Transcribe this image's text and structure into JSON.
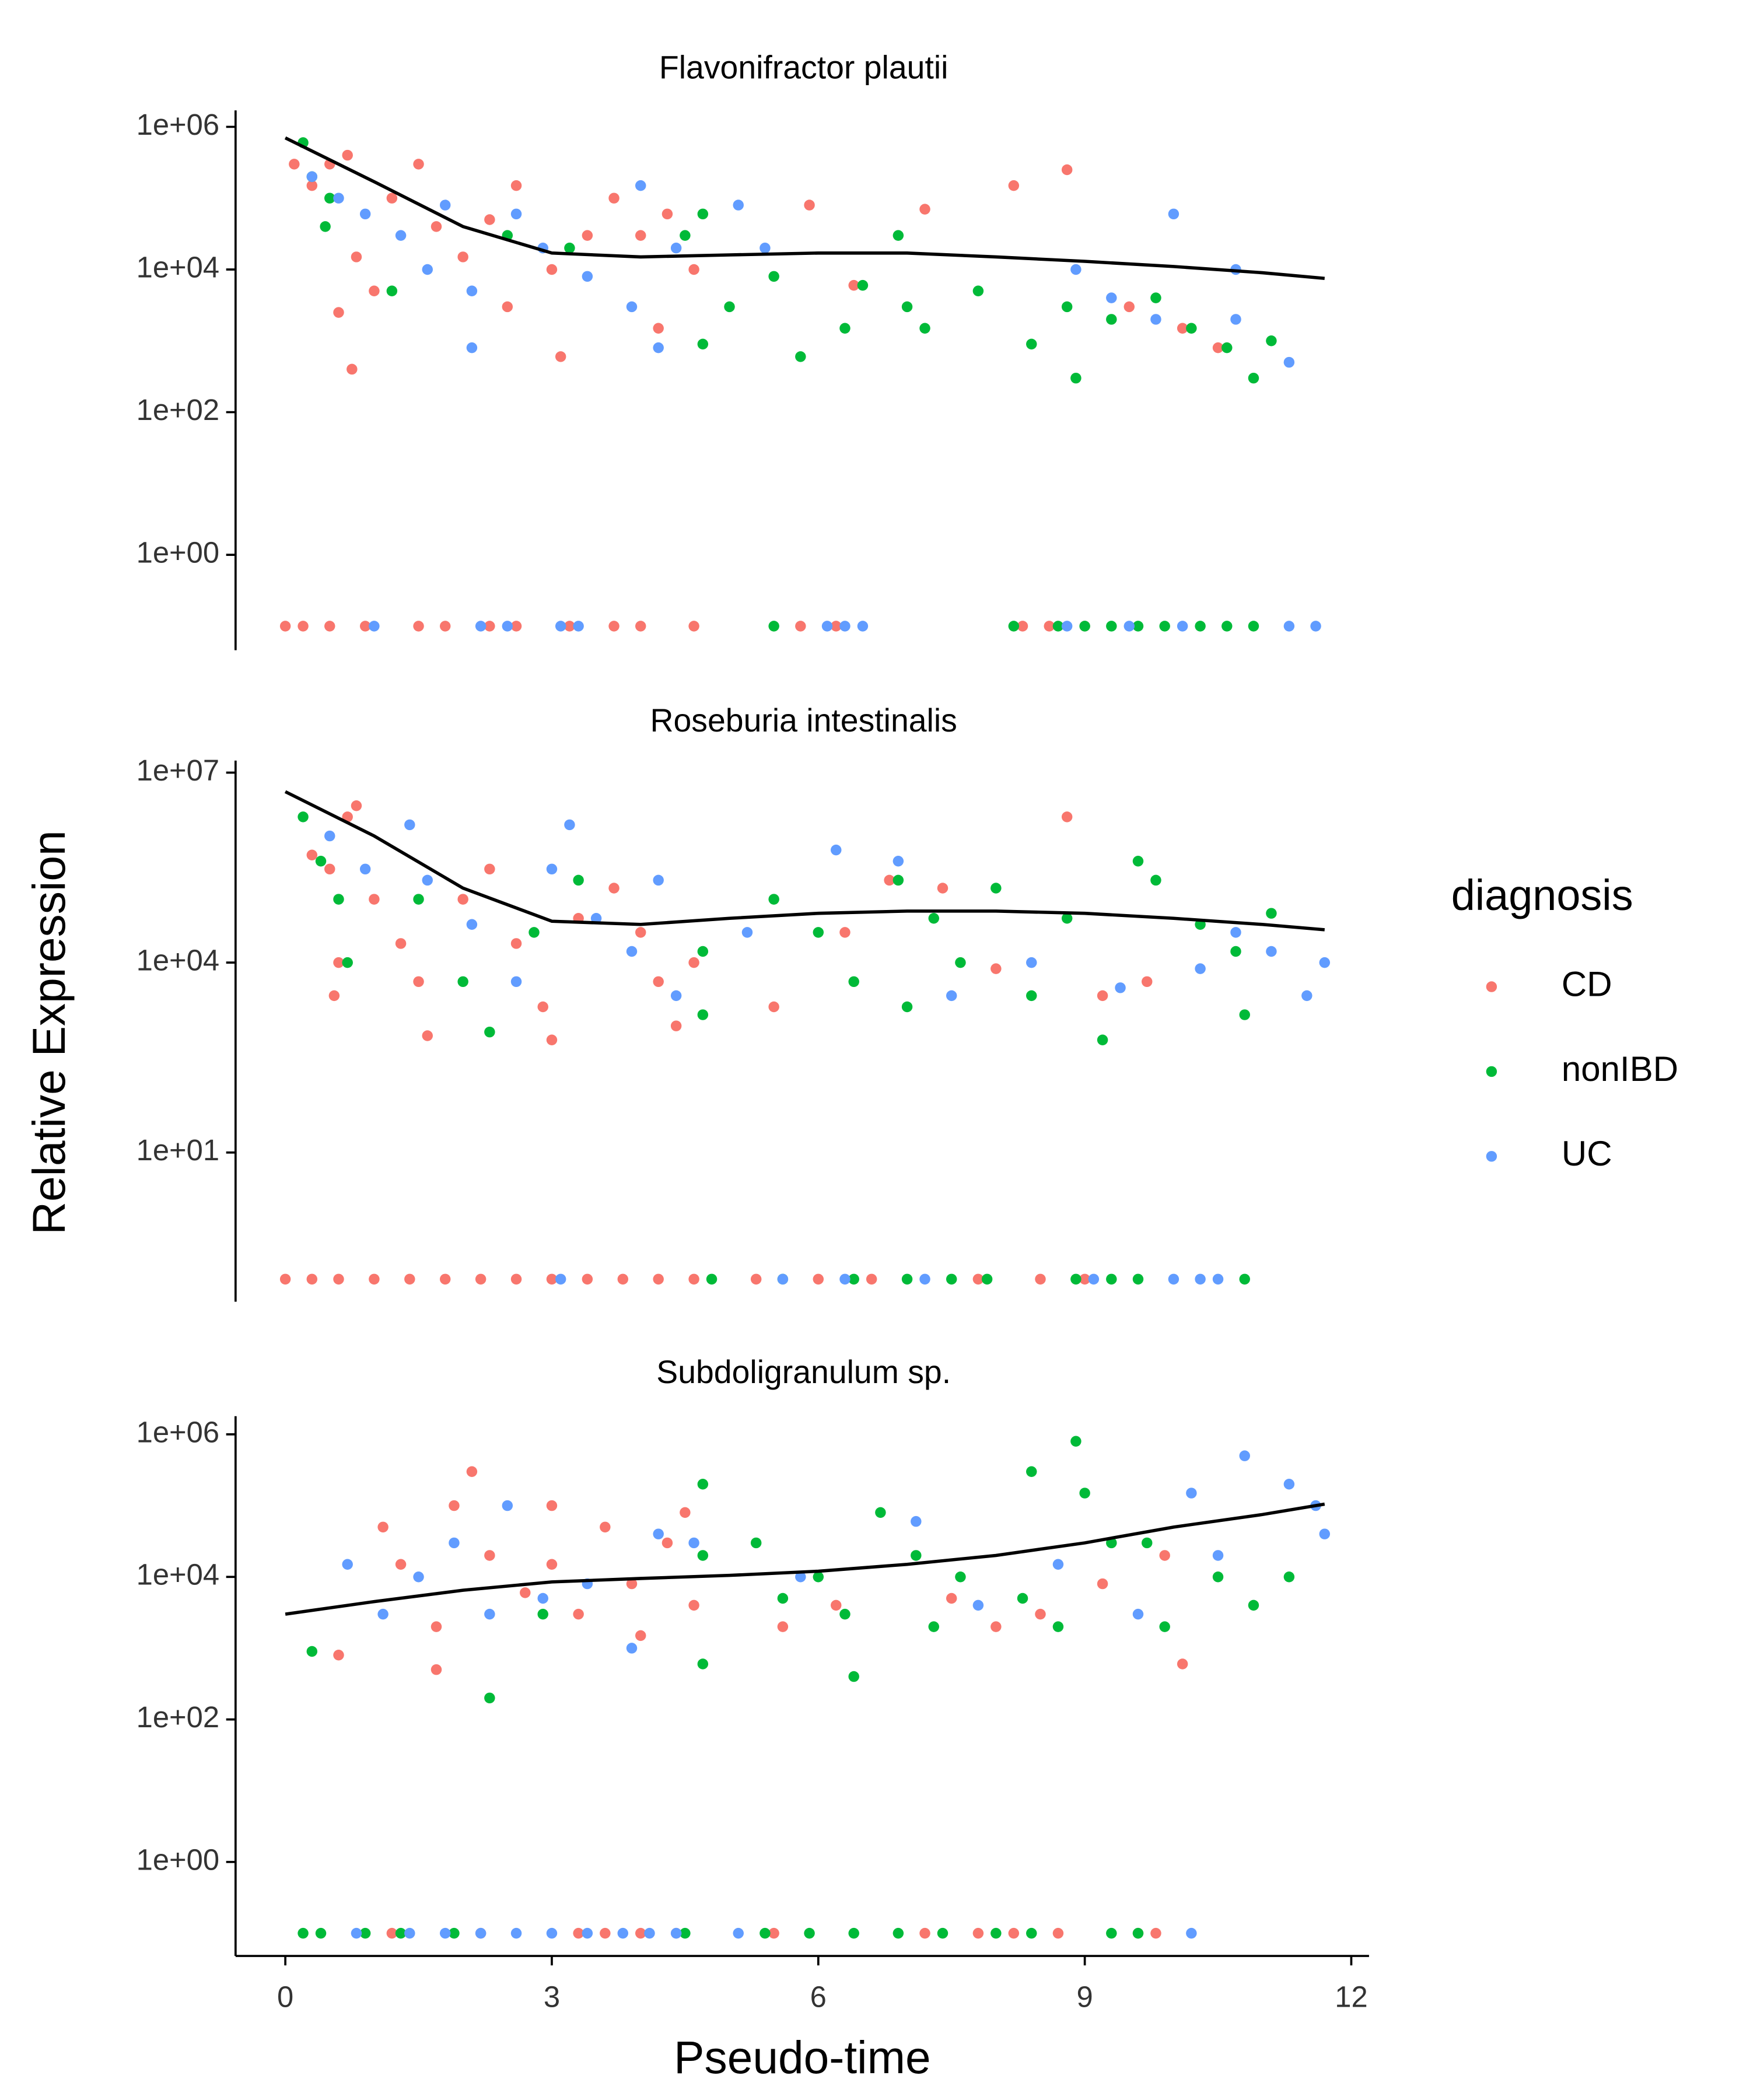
{
  "xlabel": "Pseudo-time",
  "ylabel": "Relative Expression",
  "legend_title": "diagnosis",
  "legend": "right",
  "chart_data": [
    {
      "type": "scatter",
      "title": "Flavonifractor plautii",
      "log_y": true,
      "xlim": [
        -0.56,
        12.2
      ],
      "ylim": [
        0.046,
        1700000
      ],
      "yticks": [
        {
          "value": 1,
          "label": "1e+00"
        },
        {
          "value": 100,
          "label": "1e+02"
        },
        {
          "value": 10000,
          "label": "1e+04"
        },
        {
          "value": 1000000,
          "label": "1e+06"
        }
      ],
      "series": [
        {
          "name": "CD",
          "color": "#F8766D",
          "x": [
            0.1,
            0.3,
            0.5,
            0.7,
            0.8,
            0.6,
            0.75,
            1.0,
            1.2,
            1.5,
            1.7,
            2.0,
            2.3,
            2.5,
            2.6,
            3.0,
            3.1,
            3.4,
            3.7,
            4.0,
            4.3,
            4.6,
            4.2,
            5.9,
            6.4,
            7.2,
            8.2,
            8.8,
            9.5,
            10.1,
            10.5,
            0,
            0.2,
            0.5,
            0.9,
            1.5,
            1.8,
            2.3,
            2.6,
            3.2,
            3.7,
            4.0,
            4.6,
            5.8,
            6.2,
            8.3,
            8.6,
            9.0
          ],
          "values": [
            300000,
            150000,
            300000,
            400000,
            15000,
            2500,
            400,
            5000,
            100000,
            300000,
            40000,
            15000,
            50000,
            3000,
            150000,
            10000,
            600,
            30000,
            100000,
            30000,
            60000,
            10000,
            1500,
            80000,
            6000,
            70000,
            150000,
            250000,
            3000,
            1500,
            800,
            0.1,
            0.1,
            0.1,
            0.1,
            0.1,
            0.1,
            0.1,
            0.1,
            0.1,
            0.1,
            0.1,
            0.1,
            0.1,
            0.1,
            0.1,
            0.1,
            0.1
          ]
        },
        {
          "name": "nonIBD",
          "color": "#00BA38",
          "x": [
            0.2,
            0.3,
            0.5,
            0.45,
            1.2,
            2.5,
            3.2,
            4.5,
            4.7,
            4.7,
            5.0,
            5.5,
            5.8,
            6.3,
            6.5,
            6.9,
            7.0,
            7.2,
            7.8,
            8.4,
            8.8,
            8.9,
            9.3,
            9.8,
            10.2,
            10.6,
            10.9,
            11.1,
            5.5,
            8.2,
            8.7,
            9.0,
            9.3,
            9.6,
            9.9,
            10.3,
            10.6,
            10.9
          ],
          "values": [
            600000,
            200000,
            100000,
            40000,
            5000,
            30000,
            20000,
            30000,
            60000,
            900,
            3000,
            8000,
            600,
            1500,
            6000,
            30000,
            3000,
            1500,
            5000,
            900,
            3000,
            300,
            2000,
            4000,
            1500,
            800,
            300,
            1000,
            0.1,
            0.1,
            0.1,
            0.1,
            0.1,
            0.1,
            0.1,
            0.1,
            0.1,
            0.1
          ]
        },
        {
          "name": "UC",
          "color": "#619CFF",
          "x": [
            0.3,
            0.6,
            0.9,
            1.3,
            1.6,
            1.8,
            2.1,
            2.1,
            2.6,
            2.9,
            3.4,
            3.9,
            4.0,
            4.2,
            4.4,
            5.1,
            5.4,
            8.9,
            9.3,
            9.8,
            10.0,
            10.7,
            10.7,
            11.3,
            1.0,
            2.2,
            2.5,
            3.1,
            3.3,
            6.1,
            6.3,
            6.5,
            8.8,
            9.5,
            10.1,
            11.3,
            11.6
          ],
          "values": [
            200000,
            100000,
            60000,
            30000,
            10000,
            80000,
            5000,
            800,
            60000,
            20000,
            8000,
            3000,
            150000,
            800,
            20000,
            80000,
            20000,
            10000,
            4000,
            2000,
            60000,
            10000,
            2000,
            500,
            0.1,
            0.1,
            0.1,
            0.1,
            0.1,
            0.1,
            0.1,
            0.1,
            0.1,
            0.1,
            0.1,
            0.1,
            0.1
          ]
        }
      ],
      "smooth": {
        "color": "#000000",
        "x": [
          0,
          1,
          2,
          3,
          4,
          5,
          6,
          7,
          8,
          9,
          10,
          11,
          11.7
        ],
        "values": [
          700000,
          170000,
          40000,
          17000,
          15000,
          16000,
          17000,
          17000,
          15000,
          13000,
          11000,
          9000,
          7500
        ]
      }
    },
    {
      "type": "scatter",
      "title": "Roseburia intestinalis",
      "log_y": true,
      "xlim": [
        -0.56,
        12.2
      ],
      "ylim": [
        0.044,
        15500000
      ],
      "yticks": [
        {
          "value": 10,
          "label": "1e+01"
        },
        {
          "value": 10000,
          "label": "1e+04"
        },
        {
          "value": 10000000,
          "label": "1e+07"
        }
      ],
      "series": [
        {
          "name": "CD",
          "color": "#F8766D",
          "x": [
            0.3,
            0.5,
            0.7,
            0.8,
            0.6,
            0.55,
            1.0,
            1.3,
            1.5,
            1.6,
            2.0,
            2.3,
            2.6,
            2.9,
            3.0,
            3.3,
            3.7,
            4.0,
            4.2,
            4.4,
            4.6,
            5.5,
            6.3,
            6.8,
            7.4,
            8.0,
            8.8,
            9.2,
            9.7,
            0,
            0.3,
            0.6,
            1.0,
            1.4,
            1.8,
            2.2,
            2.6,
            3.0,
            3.4,
            3.8,
            4.2,
            4.6,
            5.3,
            6.0,
            6.6,
            7.8,
            8.5,
            9.0
          ],
          "values": [
            500000,
            300000,
            2000000,
            3000000,
            10000,
            3000,
            100000,
            20000,
            5000,
            700,
            100000,
            300000,
            20000,
            2000,
            600,
            50000,
            150000,
            30000,
            5000,
            1000,
            10000,
            2000,
            30000,
            200000,
            150000,
            8000,
            2000000,
            3000,
            5000,
            0.1,
            0.1,
            0.1,
            0.1,
            0.1,
            0.1,
            0.1,
            0.1,
            0.1,
            0.1,
            0.1,
            0.1,
            0.1,
            0.1,
            0.1,
            0.1,
            0.1,
            0.1,
            0.1
          ]
        },
        {
          "name": "nonIBD",
          "color": "#00BA38",
          "x": [
            0.2,
            0.4,
            0.6,
            0.7,
            1.5,
            2.0,
            2.3,
            2.8,
            3.3,
            4.7,
            4.7,
            5.5,
            6.0,
            6.4,
            6.9,
            7.0,
            7.3,
            7.6,
            8.0,
            8.4,
            8.8,
            9.2,
            9.6,
            9.8,
            10.3,
            10.7,
            10.8,
            11.1,
            4.8,
            5.6,
            6.4,
            7.0,
            7.5,
            7.9,
            8.9,
            9.3,
            9.6,
            10.8
          ],
          "values": [
            2000000,
            400000,
            100000,
            10000,
            100000,
            5000,
            800,
            30000,
            200000,
            15000,
            1500,
            100000,
            30000,
            5000,
            200000,
            2000,
            50000,
            10000,
            150000,
            3000,
            50000,
            600,
            400000,
            200000,
            40000,
            15000,
            1500,
            60000,
            0.1,
            0.1,
            0.1,
            0.1,
            0.1,
            0.1,
            0.1,
            0.1,
            0.1,
            0.1
          ]
        },
        {
          "name": "UC",
          "color": "#619CFF",
          "x": [
            0.5,
            0.9,
            1.4,
            1.6,
            2.1,
            2.6,
            3.0,
            3.2,
            3.5,
            3.9,
            4.2,
            4.4,
            5.2,
            6.2,
            6.9,
            7.5,
            8.4,
            9.4,
            10.3,
            10.7,
            11.1,
            11.5,
            11.7,
            3.1,
            5.6,
            6.3,
            7.2,
            9.1,
            10.0,
            10.3,
            10.5
          ],
          "values": [
            1000000,
            300000,
            1500000,
            200000,
            40000,
            5000,
            300000,
            1500000,
            50000,
            15000,
            200000,
            3000,
            30000,
            600000,
            400000,
            3000,
            10000,
            4000,
            8000,
            30000,
            15000,
            3000,
            10000,
            0.1,
            0.1,
            0.1,
            0.1,
            0.1,
            0.1,
            0.1,
            0.1
          ]
        }
      ],
      "smooth": {
        "color": "#000000",
        "x": [
          0,
          1,
          2,
          3,
          4,
          5,
          6,
          7,
          8,
          9,
          10,
          11,
          11.7
        ],
        "values": [
          5000000,
          1000000,
          150000,
          45000,
          40000,
          50000,
          60000,
          65000,
          65000,
          60000,
          50000,
          40000,
          33000
        ]
      }
    },
    {
      "type": "scatter",
      "title": "Subdoligranulum sp.",
      "log_y": true,
      "xlim": [
        -0.56,
        12.2
      ],
      "ylim": [
        0.048,
        1800000
      ],
      "xticks": [
        0,
        3,
        6,
        9,
        12
      ],
      "yticks": [
        {
          "value": 1,
          "label": "1e+00"
        },
        {
          "value": 100,
          "label": "1e+02"
        },
        {
          "value": 10000,
          "label": "1e+04"
        },
        {
          "value": 1000000,
          "label": "1e+06"
        }
      ],
      "series": [
        {
          "name": "CD",
          "color": "#F8766D",
          "x": [
            1.1,
            1.3,
            1.7,
            1.9,
            2.1,
            2.3,
            2.7,
            3.0,
            3.0,
            3.3,
            3.6,
            3.9,
            4.0,
            4.3,
            4.5,
            4.6,
            5.6,
            6.2,
            7.5,
            8.0,
            8.5,
            9.2,
            9.9,
            10.1,
            0.6,
            1.7,
            1.2,
            2.2,
            3.3,
            3.6,
            4.0,
            4.4,
            5.5,
            7.2,
            7.8,
            8.2,
            8.7,
            9.6,
            9.8
          ],
          "values": [
            50000,
            15000,
            2000,
            100000,
            300000,
            20000,
            6000,
            100000,
            15000,
            3000,
            50000,
            8000,
            1500,
            30000,
            80000,
            4000,
            2000,
            4000,
            5000,
            2000,
            3000,
            8000,
            20000,
            600,
            800,
            500,
            0.1,
            0.1,
            0.1,
            0.1,
            0.1,
            0.1,
            0.1,
            0.1,
            0.1,
            0.1,
            0.1,
            0.1,
            0.1
          ]
        },
        {
          "name": "nonIBD",
          "color": "#00BA38",
          "x": [
            0.3,
            2.3,
            2.9,
            4.7,
            4.7,
            4.7,
            5.3,
            5.6,
            6.0,
            6.3,
            6.4,
            6.7,
            7.1,
            7.3,
            7.6,
            8.3,
            8.4,
            8.7,
            8.9,
            9.0,
            9.3,
            9.7,
            9.9,
            10.5,
            10.9,
            11.3,
            0.2,
            0.4,
            0.9,
            1.3,
            1.9,
            4.5,
            5.4,
            5.9,
            6.4,
            6.9,
            7.4,
            8.0,
            8.4,
            9.3,
            9.6
          ],
          "values": [
            900,
            200,
            3000,
            20000,
            600,
            200000,
            30000,
            5000,
            10000,
            3000,
            400,
            80000,
            20000,
            2000,
            10000,
            5000,
            300000,
            2000,
            800000,
            150000,
            30000,
            30000,
            2000,
            10000,
            4000,
            10000,
            0.1,
            0.1,
            0.1,
            0.1,
            0.1,
            0.1,
            0.1,
            0.1,
            0.1,
            0.1,
            0.1,
            0.1,
            0.1,
            0.1,
            0.1
          ]
        },
        {
          "name": "UC",
          "color": "#619CFF",
          "x": [
            0.7,
            1.1,
            1.5,
            1.9,
            2.3,
            2.5,
            2.9,
            3.4,
            3.9,
            4.2,
            4.6,
            5.8,
            7.1,
            7.8,
            8.7,
            9.6,
            10.2,
            10.5,
            10.8,
            11.3,
            11.6,
            11.7,
            0.8,
            1.4,
            1.8,
            2.2,
            2.6,
            3.0,
            3.4,
            3.8,
            4.1,
            4.4,
            5.1,
            10.2
          ],
          "values": [
            15000,
            3000,
            10000,
            30000,
            3000,
            100000,
            5000,
            8000,
            1000,
            40000,
            30000,
            10000,
            60000,
            4000,
            15000,
            3000,
            150000,
            20000,
            500000,
            200000,
            100000,
            40000,
            0.1,
            0.1,
            0.1,
            0.1,
            0.1,
            0.1,
            0.1,
            0.1,
            0.1,
            0.1,
            0.1,
            0.1
          ]
        }
      ],
      "smooth": {
        "color": "#000000",
        "x": [
          0,
          1,
          2,
          3,
          4,
          5,
          6,
          7,
          8,
          9,
          10,
          11,
          11.7
        ],
        "values": [
          3000,
          4500,
          6500,
          8500,
          9500,
          10500,
          12000,
          15000,
          20000,
          30000,
          50000,
          75000,
          105000
        ]
      }
    }
  ]
}
